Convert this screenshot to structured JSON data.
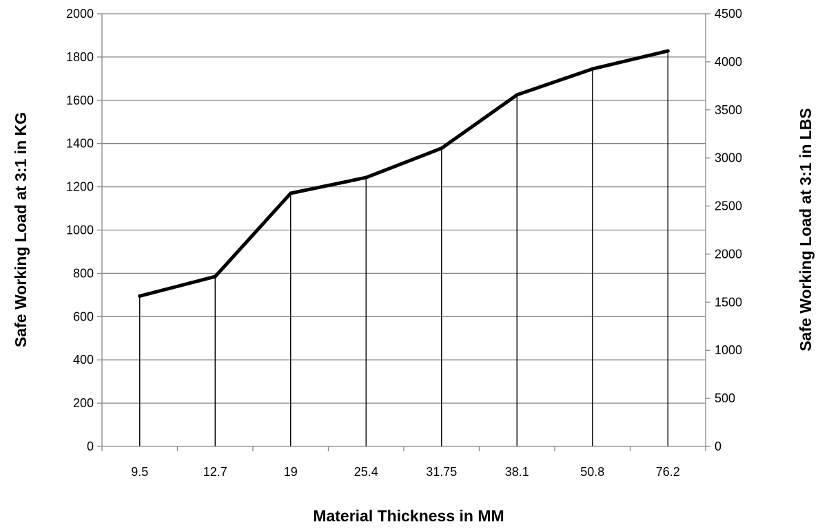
{
  "chart_data": {
    "type": "line",
    "title": "",
    "xlabel": "Material Thickness in MM",
    "ylabel": "Safe Working Load at 3:1 in KG",
    "y2label": "Safe Working Load at 3:1 in LBS",
    "categories": [
      "9.5",
      "12.7",
      "19",
      "25.4",
      "31.75",
      "38.1",
      "50.8",
      "76.2"
    ],
    "series": [
      {
        "values": [
          695,
          785,
          1170,
          1243,
          1378,
          1625,
          1745,
          1828
        ]
      }
    ],
    "ylim": [
      0,
      2000
    ],
    "yticks": [
      "0",
      "200",
      "400",
      "600",
      "800",
      "1000",
      "1200",
      "1400",
      "1600",
      "1800",
      "2000"
    ],
    "y2lim": [
      0,
      4500
    ],
    "y2ticks": [
      "0",
      "500",
      "1000",
      "1500",
      "2000",
      "2500",
      "3000",
      "3500",
      "4000",
      "4500"
    ],
    "grid": true,
    "drop_lines": true,
    "legend": "none",
    "colors": {
      "line": "#000000",
      "grid": "#868686",
      "axis": "#868686"
    }
  }
}
